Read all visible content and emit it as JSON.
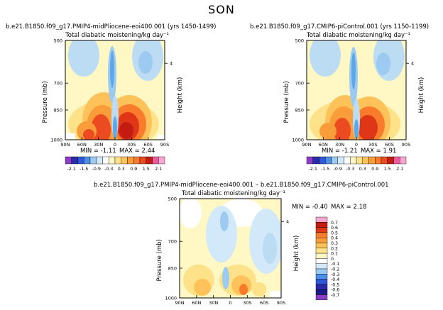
{
  "page_title": "SON",
  "chart_data": [
    {
      "type": "heatmap",
      "case_title": "b.e21.B1850.f09_g17.PMIP4-midPliocene-eoi400.001",
      "years": "(yrs 1450-1499)",
      "title": "Total diabatic moistening/kg day⁻¹",
      "xlabel": "",
      "ylabel": "Pressure (mb)",
      "y2label": "Height (km)",
      "x_ticks": [
        "90N",
        "60N",
        "30N",
        "0",
        "30S",
        "60S",
        "90S"
      ],
      "y_ticks": [
        "500",
        "700",
        "850",
        "1000"
      ],
      "y2_ticks": [
        "4"
      ],
      "min_label": "MIN = -1.11",
      "max_label": "MAX = 2.44",
      "min": -1.11,
      "max": 2.44,
      "colorbar_levels": [
        -2.1,
        -1.5,
        -0.9,
        -0.3,
        0.3,
        0.9,
        1.5,
        2.1
      ],
      "colorbar_labels": [
        "-2.1",
        "-1.5",
        "-0.9",
        "-0.3",
        "0.3",
        "0.9",
        "1.5",
        "2.1"
      ]
    },
    {
      "type": "heatmap",
      "case_title": "b.e21.B1850.f09_g17.CMIP6-piControl.001",
      "years": "(yrs 1150-1199)",
      "title": "Total diabatic moistening/kg day⁻¹",
      "xlabel": "",
      "ylabel": "Pressure (mb)",
      "y2label": "Height (km)",
      "x_ticks": [
        "90N",
        "60N",
        "30N",
        "0",
        "30S",
        "60S",
        "90S"
      ],
      "y_ticks": [
        "500",
        "700",
        "850",
        "1000"
      ],
      "y2_ticks": [
        "4"
      ],
      "min_label": "MIN = -1.21",
      "max_label": "MAX = 1.91",
      "min": -1.21,
      "max": 1.91,
      "colorbar_levels": [
        -2.1,
        -1.5,
        -0.9,
        -0.3,
        0.3,
        0.9,
        1.5,
        2.1
      ],
      "colorbar_labels": [
        "-2.1",
        "-1.5",
        "-0.9",
        "-0.3",
        "0.3",
        "0.9",
        "1.5",
        "2.1"
      ]
    },
    {
      "type": "heatmap",
      "case_title": "b.e21.B1850.f09_g17.PMIP4-midPliocene-eoi400.001 – b.e21.B1850.f09_g17.CMIP6-piControl.001",
      "title": "Total diabatic moistening/kg day⁻¹",
      "xlabel": "",
      "ylabel": "Pressure (mb)",
      "y2label": "Height (km)",
      "x_ticks": [
        "90N",
        "60N",
        "30N",
        "0",
        "30S",
        "60S",
        "90S"
      ],
      "y_ticks": [
        "500",
        "700",
        "850",
        "1000"
      ],
      "y2_ticks": [
        "4"
      ],
      "min_label": "MIN = -0.40",
      "max_label": "MAX = 2.18",
      "min": -0.4,
      "max": 2.18,
      "colorbar_labels": [
        "0.7",
        "0.6",
        "0.5",
        "0.4",
        "0.3",
        "0.2",
        "0.1",
        "0",
        "-0.1",
        "-0.2",
        "-0.3",
        "-0.4",
        "-0.5",
        "-0.6",
        "-0.7"
      ]
    }
  ]
}
